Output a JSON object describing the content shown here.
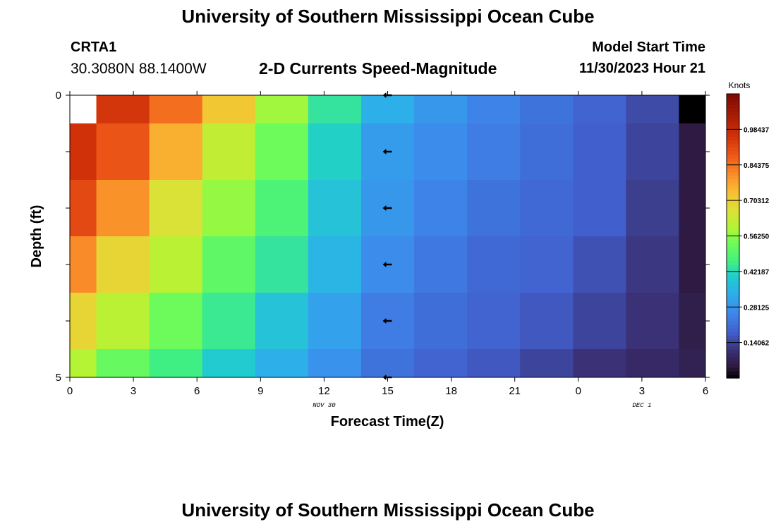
{
  "header": {
    "title": "University of Southern Mississippi Ocean Cube",
    "station": "CRTA1",
    "coords": "30.3080N  88.1400W",
    "subtitle": "2-D Currents Speed-Magnitude",
    "model_start_label": "Model Start Time",
    "model_start_value": "11/30/2023 Hour 21"
  },
  "footer": {
    "title": "University of Southern Mississippi Ocean Cube"
  },
  "chart_data": {
    "type": "heatmap",
    "xlabel": "Forecast Time(Z)",
    "ylabel": "Depth (ft)",
    "x_tick_labels": [
      "0",
      "3",
      "6",
      "9",
      "12",
      "15",
      "18",
      "21",
      "0",
      "3",
      "6"
    ],
    "x_range_hours": [
      0,
      30
    ],
    "date_labels": [
      {
        "text": "NOV 30",
        "at_hour": 12
      },
      {
        "text": "DEC 1",
        "at_hour": 27
      }
    ],
    "y_tick_labels": [
      "0",
      "5"
    ],
    "y_range_ft": [
      0,
      5
    ],
    "column_centers_hours": [
      0,
      2.5,
      5,
      7.5,
      10,
      12.5,
      15,
      17.5,
      20,
      22.5,
      25,
      27.5,
      30
    ],
    "depth_rows_ft": [
      0,
      1,
      2,
      3,
      4,
      5
    ],
    "values": [
      [
        null,
        0.95,
        0.85,
        0.72,
        0.58,
        0.44,
        0.34,
        0.29,
        0.25,
        0.22,
        0.19,
        0.15,
        0.0
      ],
      [
        0.96,
        0.89,
        0.76,
        0.62,
        0.53,
        0.41,
        0.3,
        0.27,
        0.24,
        0.21,
        0.18,
        0.14,
        0.05
      ],
      [
        0.91,
        0.8,
        0.66,
        0.57,
        0.48,
        0.38,
        0.29,
        0.25,
        0.22,
        0.2,
        0.18,
        0.13,
        0.05
      ],
      [
        0.81,
        0.69,
        0.61,
        0.51,
        0.44,
        0.35,
        0.27,
        0.23,
        0.2,
        0.19,
        0.16,
        0.12,
        0.05
      ],
      [
        0.69,
        0.61,
        0.53,
        0.45,
        0.38,
        0.31,
        0.24,
        0.21,
        0.19,
        0.17,
        0.14,
        0.11,
        0.06
      ],
      [
        0.6,
        0.52,
        0.46,
        0.4,
        0.34,
        0.28,
        0.22,
        0.19,
        0.17,
        0.14,
        0.11,
        0.09,
        0.07
      ]
    ],
    "arrows": [
      {
        "hour": 15,
        "depth": 0,
        "direction": "west"
      },
      {
        "hour": 15,
        "depth": 1,
        "direction": "west"
      },
      {
        "hour": 15,
        "depth": 2,
        "direction": "west"
      },
      {
        "hour": 15,
        "depth": 3,
        "direction": "west"
      },
      {
        "hour": 15,
        "depth": 4,
        "direction": "west"
      },
      {
        "hour": 15,
        "depth": 5,
        "direction": "west"
      }
    ],
    "colorbar": {
      "label": "Knots",
      "range": [
        0.0,
        1.125
      ],
      "tick_values": [
        0.14062,
        0.28125,
        0.42187,
        0.5625,
        0.70312,
        0.84375,
        0.98437
      ],
      "tick_labels": [
        "0.14062",
        "0.28125",
        "0.42187",
        "0.56250",
        "0.70312",
        "0.84375",
        "0.98437"
      ]
    }
  }
}
